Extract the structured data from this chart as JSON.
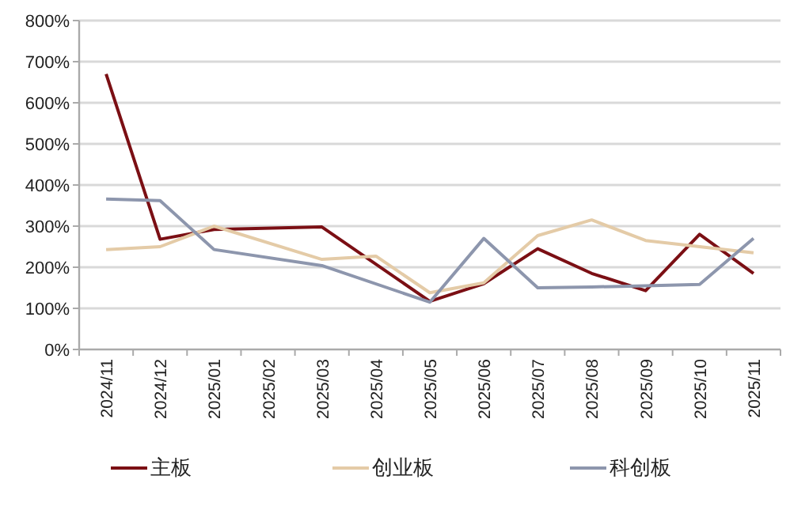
{
  "chart_data": {
    "type": "line",
    "categories": [
      "2024/11",
      "2024/12",
      "2025/01",
      "2025/02",
      "2025/03",
      "2025/04",
      "2025/05",
      "2025/06",
      "2025/07",
      "2025/08",
      "2025/09",
      "2025/10",
      "2025/11"
    ],
    "series": [
      {
        "name": "主板",
        "color": "#7b0f14",
        "values": [
          670,
          268,
          292,
          null,
          298,
          null,
          117,
          160,
          245,
          185,
          143,
          280,
          185
        ]
      },
      {
        "name": "创业板",
        "color": "#e4cba7",
        "values": [
          243,
          250,
          300,
          null,
          219,
          227,
          138,
          162,
          277,
          315,
          265,
          250,
          235
        ]
      },
      {
        "name": "科创板",
        "color": "#8d96ad",
        "values": [
          366,
          362,
          243,
          null,
          204,
          null,
          115,
          270,
          150,
          152,
          155,
          158,
          270
        ]
      }
    ],
    "ylim": [
      0,
      800
    ],
    "yticks": [
      {
        "value": 0,
        "label": "0%"
      },
      {
        "value": 100,
        "label": "100%"
      },
      {
        "value": 200,
        "label": "200%"
      },
      {
        "value": 300,
        "label": "300%"
      },
      {
        "value": 400,
        "label": "400%"
      },
      {
        "value": 500,
        "label": "500%"
      },
      {
        "value": 600,
        "label": "600%"
      },
      {
        "value": 700,
        "label": "700%"
      },
      {
        "value": 800,
        "label": "800%"
      }
    ],
    "grid": "y",
    "legend": "bottom",
    "line_style": "solid",
    "marker": "none"
  }
}
